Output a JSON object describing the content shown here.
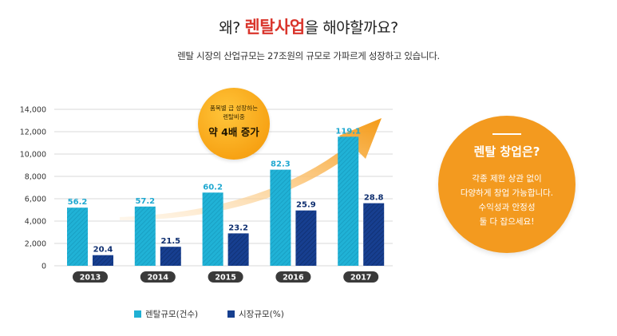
{
  "header": {
    "title_pre": "왜? ",
    "title_highlight": "렌탈사업",
    "title_post": "을 해야할까요?",
    "subtitle": "렌탈 시장의 산업규모는 27조원의 규모로 가파르게 성장하고 있습니다."
  },
  "badge": {
    "line1": "품목별 급 성장하는",
    "line2": "렌탈비중",
    "line3": "약 4배 증가"
  },
  "cta": {
    "heading": "렌탈 창업은?",
    "lines": [
      "각종 제한 상관 없이",
      "다양하게 창업 가능합니다.",
      "수익성과 안정성",
      "둘 다 잡으세요!"
    ]
  },
  "legend": {
    "rental": "렌탈규모(건수)",
    "market": "시장규모(%)"
  },
  "colors": {
    "rental": "#1fb0d4",
    "market": "#163f8f",
    "accent_orange": "#f39a1f",
    "title_red": "#d9342b",
    "year_pill": "#3a3a3a"
  },
  "chart_data": {
    "type": "bar",
    "categories": [
      "2013",
      "2014",
      "2015",
      "2016",
      "2017"
    ],
    "ylim": [
      0,
      14000
    ],
    "yticks": [
      0,
      2000,
      4000,
      6000,
      8000,
      10000,
      12000,
      14000
    ],
    "ytick_labels": [
      "0",
      "2,000",
      "4,000",
      "6,000",
      "8,000",
      "10,000",
      "12,000",
      "14,000"
    ],
    "grid": true,
    "series": [
      {
        "name": "렌탈규모(건수)",
        "values": [
          5200,
          5300,
          6550,
          8600,
          11550
        ],
        "labels": [
          "56.2",
          "57.2",
          "60.2",
          "82.3",
          "119.1"
        ]
      },
      {
        "name": "시장규모(%)",
        "values": [
          950,
          1700,
          2900,
          4950,
          5600
        ],
        "labels": [
          "20.4",
          "21.5",
          "23.2",
          "25.9",
          "28.8"
        ]
      }
    ]
  }
}
